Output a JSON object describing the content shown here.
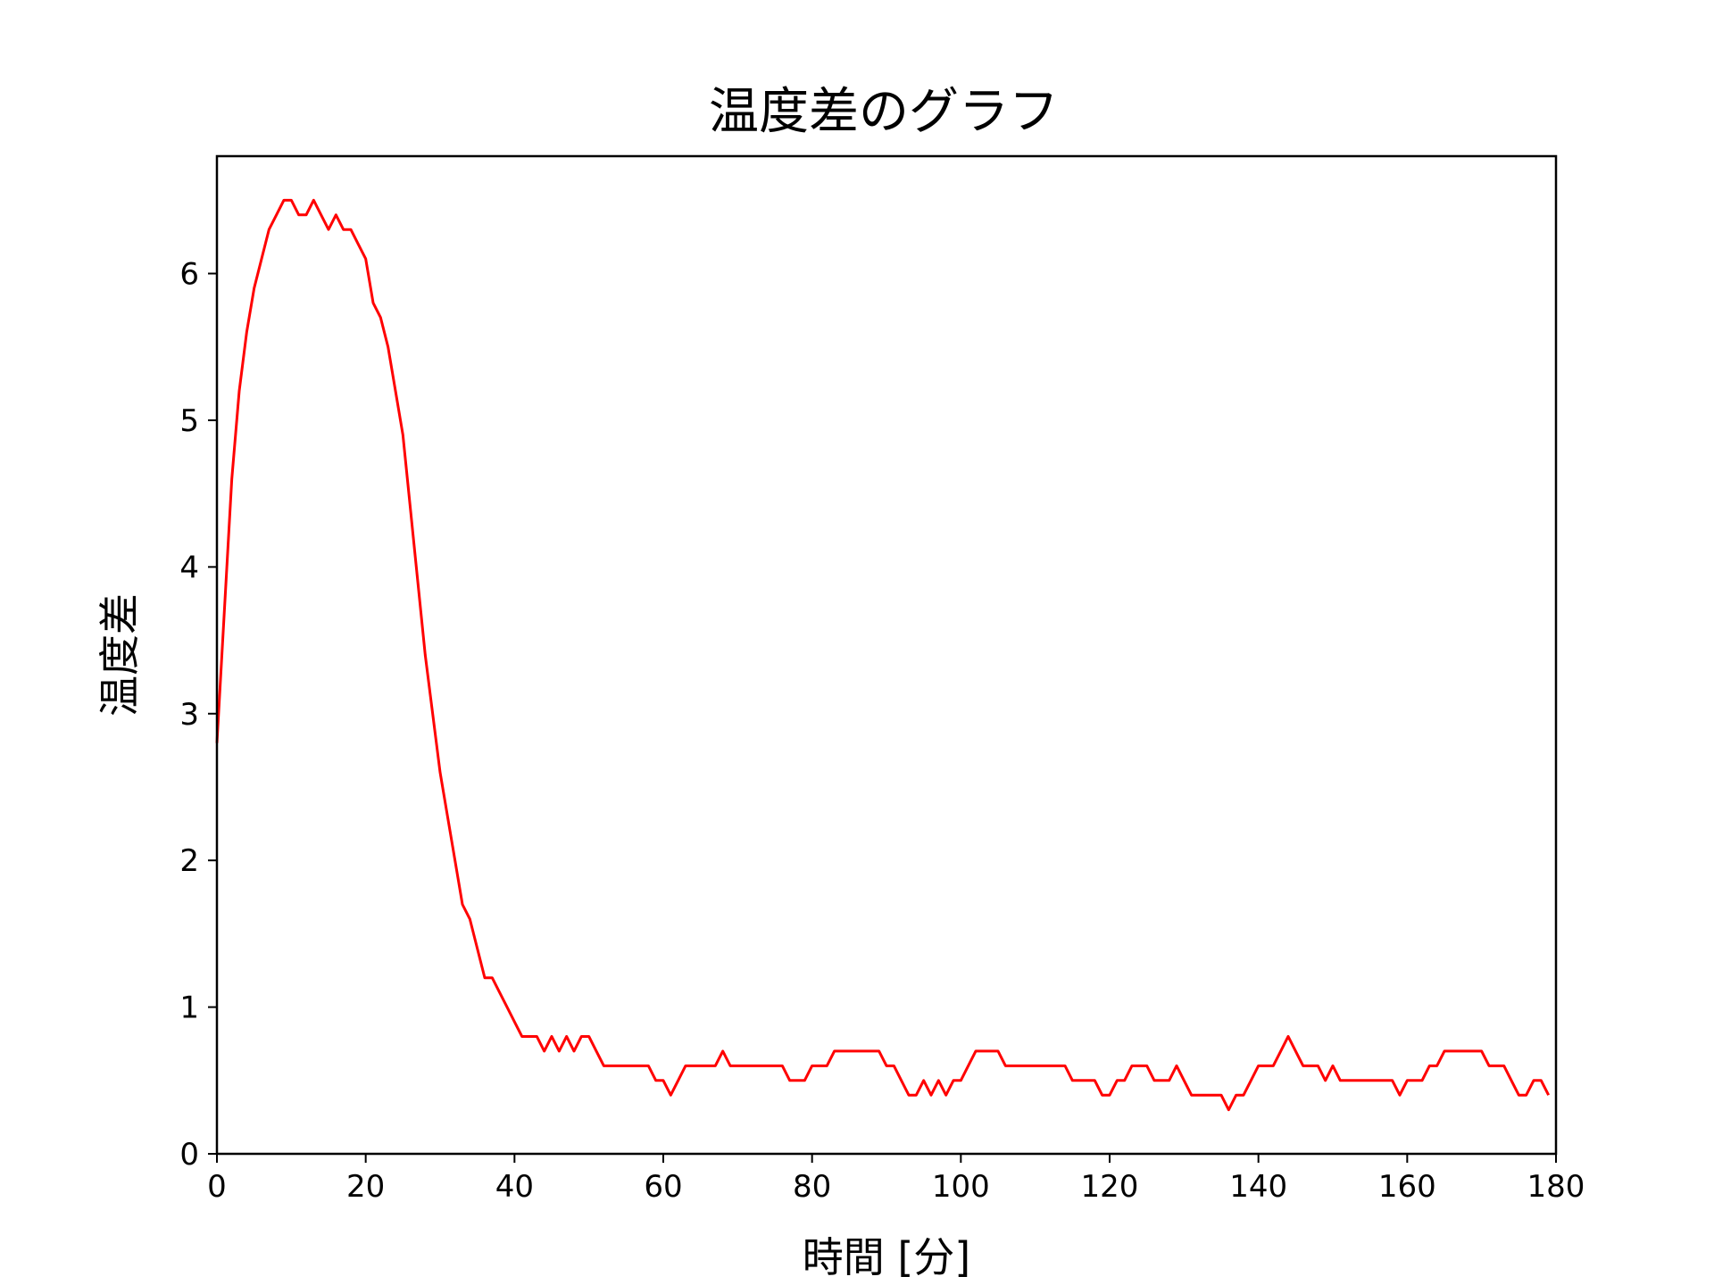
{
  "chart_data": {
    "type": "line",
    "title": "温度差のグラフ",
    "xlabel": "時間 [分]",
    "ylabel": "温度差",
    "xlim": [
      0,
      180
    ],
    "ylim": [
      0,
      6.8
    ],
    "xticks": [
      0,
      20,
      40,
      60,
      80,
      100,
      120,
      140,
      160,
      180
    ],
    "yticks": [
      0,
      1,
      2,
      3,
      4,
      5,
      6
    ],
    "grid": false,
    "series": [
      {
        "color": "#ff0000",
        "x": [
          0,
          1,
          2,
          3,
          4,
          5,
          6,
          7,
          8,
          9,
          10,
          11,
          12,
          13,
          14,
          15,
          16,
          17,
          18,
          19,
          20,
          21,
          22,
          23,
          24,
          25,
          26,
          27,
          28,
          29,
          30,
          31,
          32,
          33,
          34,
          35,
          36,
          37,
          38,
          39,
          40,
          41,
          42,
          43,
          44,
          45,
          46,
          47,
          48,
          49,
          50,
          51,
          52,
          53,
          54,
          55,
          56,
          57,
          58,
          59,
          60,
          61,
          62,
          63,
          64,
          65,
          66,
          67,
          68,
          69,
          70,
          71,
          72,
          73,
          74,
          75,
          76,
          77,
          78,
          79,
          80,
          81,
          82,
          83,
          84,
          85,
          86,
          87,
          88,
          89,
          90,
          91,
          92,
          93,
          94,
          95,
          96,
          97,
          98,
          99,
          100,
          101,
          102,
          103,
          104,
          105,
          106,
          107,
          108,
          109,
          110,
          111,
          112,
          113,
          114,
          115,
          116,
          117,
          118,
          119,
          120,
          121,
          122,
          123,
          124,
          125,
          126,
          127,
          128,
          129,
          130,
          131,
          132,
          133,
          134,
          135,
          136,
          137,
          138,
          139,
          140,
          141,
          142,
          143,
          144,
          145,
          146,
          147,
          148,
          149,
          150,
          151,
          152,
          153,
          154,
          155,
          156,
          157,
          158,
          159,
          160,
          161,
          162,
          163,
          164,
          165,
          166,
          167,
          168,
          169,
          170,
          171,
          172,
          173,
          174,
          175,
          176,
          177,
          178,
          179
        ],
        "y": [
          2.8,
          3.7,
          4.6,
          5.2,
          5.6,
          5.9,
          6.1,
          6.3,
          6.4,
          6.5,
          6.5,
          6.4,
          6.4,
          6.5,
          6.4,
          6.3,
          6.4,
          6.3,
          6.3,
          6.2,
          6.1,
          5.8,
          5.7,
          5.5,
          5.2,
          4.9,
          4.4,
          3.9,
          3.4,
          3.0,
          2.6,
          2.3,
          2.0,
          1.7,
          1.6,
          1.4,
          1.2,
          1.2,
          1.1,
          1.0,
          0.9,
          0.8,
          0.8,
          0.8,
          0.7,
          0.8,
          0.7,
          0.8,
          0.7,
          0.8,
          0.8,
          0.7,
          0.6,
          0.6,
          0.6,
          0.6,
          0.6,
          0.6,
          0.6,
          0.5,
          0.5,
          0.4,
          0.5,
          0.6,
          0.6,
          0.6,
          0.6,
          0.6,
          0.7,
          0.6,
          0.6,
          0.6,
          0.6,
          0.6,
          0.6,
          0.6,
          0.6,
          0.5,
          0.5,
          0.5,
          0.6,
          0.6,
          0.6,
          0.7,
          0.7,
          0.7,
          0.7,
          0.7,
          0.7,
          0.7,
          0.6,
          0.6,
          0.5,
          0.4,
          0.4,
          0.5,
          0.4,
          0.5,
          0.4,
          0.5,
          0.5,
          0.6,
          0.7,
          0.7,
          0.7,
          0.7,
          0.6,
          0.6,
          0.6,
          0.6,
          0.6,
          0.6,
          0.6,
          0.6,
          0.6,
          0.5,
          0.5,
          0.5,
          0.5,
          0.4,
          0.4,
          0.5,
          0.5,
          0.6,
          0.6,
          0.6,
          0.5,
          0.5,
          0.5,
          0.6,
          0.5,
          0.4,
          0.4,
          0.4,
          0.4,
          0.4,
          0.3,
          0.4,
          0.4,
          0.5,
          0.6,
          0.6,
          0.6,
          0.7,
          0.8,
          0.7,
          0.6,
          0.6,
          0.6,
          0.5,
          0.6,
          0.5,
          0.5,
          0.5,
          0.5,
          0.5,
          0.5,
          0.5,
          0.5,
          0.4,
          0.5,
          0.5,
          0.5,
          0.6,
          0.6,
          0.7,
          0.7,
          0.7,
          0.7,
          0.7,
          0.7,
          0.6,
          0.6,
          0.6,
          0.5,
          0.4,
          0.4,
          0.5,
          0.5,
          0.4
        ]
      }
    ]
  }
}
